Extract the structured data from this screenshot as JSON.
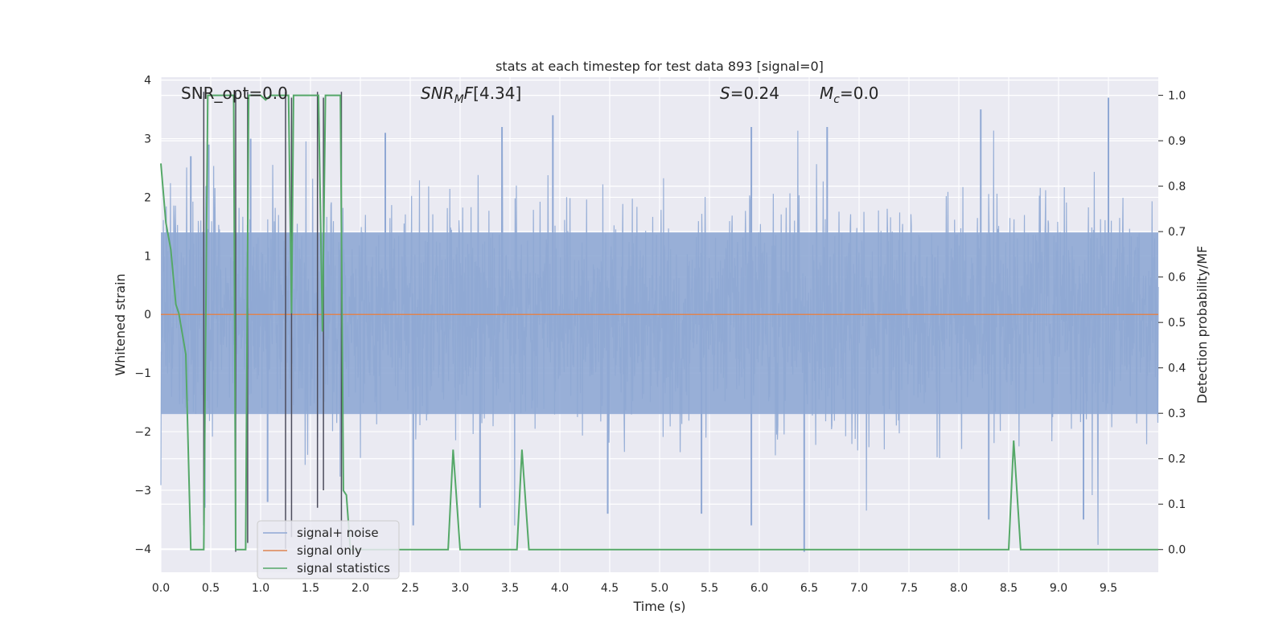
{
  "chart_data": {
    "type": "line",
    "title": "stats at each timestep for test data 893 [signal=0]",
    "xlabel": "Time (s)",
    "ylabel": "Whitened strain",
    "ylabel_right": "Detection probability/MF",
    "xlim": [
      0.0,
      10.0
    ],
    "ylim": [
      -4.4,
      4.05
    ],
    "ylim_right": [
      -0.05,
      1.04
    ],
    "x_ticks": [
      "0.0",
      "0.5",
      "1.0",
      "1.5",
      "2.0",
      "2.5",
      "3.0",
      "3.5",
      "4.0",
      "4.5",
      "5.0",
      "5.5",
      "6.0",
      "6.5",
      "7.0",
      "7.5",
      "8.0",
      "8.5",
      "9.0",
      "9.5"
    ],
    "y_ticks": [
      "4",
      "3",
      "2",
      "1",
      "0",
      "−1",
      "−2",
      "−3",
      "−4"
    ],
    "y_ticks_right": [
      "1.0",
      "0.9",
      "0.8",
      "0.7",
      "0.6",
      "0.5",
      "0.4",
      "0.3",
      "0.2",
      "0.1",
      "0.0"
    ],
    "grid": true,
    "legend_placement": "lower-left",
    "annotations": {
      "snr_opt": "SNR_opt=0.0",
      "snr_mf": "[4.34]",
      "s_value": "=0.24",
      "mc_value": "=0.0"
    },
    "series": [
      {
        "name": "signal+ noise",
        "color": "#8fa8d4",
        "axis": "left",
        "noise_envelope": {
          "typical_upper": 1.4,
          "typical_lower": -1.7,
          "max": 3.7,
          "min": -4.05
        },
        "peaks": [
          {
            "x": 0.3,
            "y": 2.7
          },
          {
            "x": 0.48,
            "y": 2.9
          },
          {
            "x": 0.9,
            "y": 3.0
          },
          {
            "x": 2.25,
            "y": 3.1
          },
          {
            "x": 3.42,
            "y": 3.2
          },
          {
            "x": 3.93,
            "y": 3.4
          },
          {
            "x": 5.92,
            "y": 3.2
          },
          {
            "x": 6.68,
            "y": 3.2
          },
          {
            "x": 8.22,
            "y": 3.5
          },
          {
            "x": 9.5,
            "y": 3.7
          }
        ],
        "troughs": [
          {
            "x": 0.44,
            "y": -3.3
          },
          {
            "x": 1.07,
            "y": -3.2
          },
          {
            "x": 2.53,
            "y": -3.6
          },
          {
            "x": 3.2,
            "y": -3.3
          },
          {
            "x": 4.48,
            "y": -3.4
          },
          {
            "x": 5.42,
            "y": -3.4
          },
          {
            "x": 5.92,
            "y": -3.6
          },
          {
            "x": 6.45,
            "y": -4.05
          },
          {
            "x": 8.3,
            "y": -3.5
          },
          {
            "x": 9.25,
            "y": -3.5
          }
        ]
      },
      {
        "name": "signal only",
        "color": "#dd8452",
        "axis": "left",
        "x": [
          0.0,
          10.0
        ],
        "values": [
          0.0,
          0.0
        ]
      },
      {
        "name": "signal statistics",
        "color": "#55a868",
        "axis": "right",
        "x": [
          0.0,
          0.05,
          0.1,
          0.15,
          0.18,
          0.25,
          0.3,
          0.43,
          0.47,
          0.5,
          0.55,
          0.6,
          0.73,
          0.75,
          0.8,
          0.85,
          0.88,
          0.93,
          1.0,
          1.05,
          1.1,
          1.15,
          1.2,
          1.28,
          1.31,
          1.33,
          1.37,
          1.42,
          1.5,
          1.55,
          1.58,
          1.62,
          1.65,
          1.68,
          1.72,
          1.75,
          1.8,
          1.83,
          1.86,
          1.9,
          1.93,
          2.0,
          2.88,
          2.93,
          3.0,
          3.57,
          3.62,
          3.69,
          8.5,
          8.55,
          8.62,
          10.0
        ],
        "values": [
          0.85,
          0.72,
          0.66,
          0.54,
          0.52,
          0.43,
          0.0,
          0.0,
          1.0,
          1.0,
          1.0,
          1.0,
          1.0,
          0.0,
          0.0,
          0.0,
          1.0,
          1.0,
          1.0,
          0.99,
          1.0,
          1.0,
          1.0,
          1.0,
          0.52,
          1.0,
          1.0,
          1.0,
          1.0,
          1.0,
          1.0,
          0.48,
          1.0,
          1.0,
          1.0,
          1.0,
          1.0,
          0.13,
          0.12,
          0.0,
          0.0,
          0.0,
          0.0,
          0.22,
          0.0,
          0.0,
          0.22,
          0.0,
          0.0,
          0.24,
          0.0,
          0.0
        ]
      },
      {
        "name": "",
        "color": "#4c4c5c",
        "axis": "left",
        "type": "vlines",
        "vlines": [
          {
            "x": 0.43,
            "y1": -3.6,
            "y2": 3.8
          },
          {
            "x": 0.75,
            "y1": -4.05,
            "y2": 3.8
          },
          {
            "x": 0.87,
            "y1": -3.9,
            "y2": 3.8
          },
          {
            "x": 1.25,
            "y1": -4.0,
            "y2": 3.8
          },
          {
            "x": 1.31,
            "y1": -3.8,
            "y2": 3.7
          },
          {
            "x": 1.57,
            "y1": -3.3,
            "y2": 3.8
          },
          {
            "x": 1.63,
            "y1": -3.0,
            "y2": 3.7
          },
          {
            "x": 1.81,
            "y1": -4.05,
            "y2": 3.8
          }
        ]
      }
    ]
  }
}
